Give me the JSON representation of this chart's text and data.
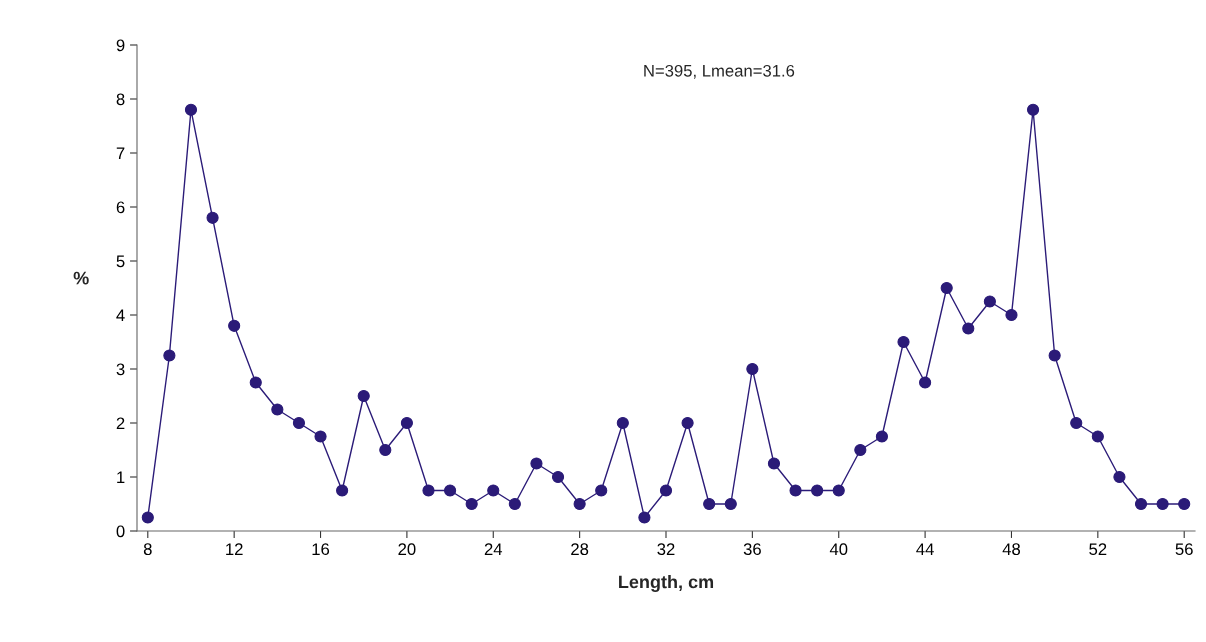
{
  "chart_data": {
    "type": "line",
    "x": [
      8,
      9,
      10,
      11,
      12,
      13,
      14,
      15,
      16,
      17,
      18,
      19,
      20,
      21,
      22,
      23,
      24,
      25,
      26,
      27,
      28,
      29,
      30,
      31,
      32,
      33,
      34,
      35,
      36,
      37,
      38,
      39,
      40,
      41,
      42,
      43,
      44,
      45,
      46,
      47,
      48,
      49,
      50,
      51,
      52,
      53,
      54,
      55,
      56
    ],
    "values": [
      0.25,
      3.25,
      7.8,
      5.8,
      3.8,
      2.75,
      2.25,
      2.0,
      1.75,
      0.75,
      2.5,
      1.5,
      2.0,
      0.75,
      0.75,
      0.5,
      0.75,
      0.5,
      1.25,
      1.0,
      0.5,
      0.75,
      2.0,
      0.25,
      0.75,
      2.0,
      0.5,
      0.5,
      3.0,
      1.25,
      0.75,
      0.75,
      0.75,
      1.5,
      1.75,
      3.5,
      2.75,
      4.5,
      3.75,
      4.25,
      4.0,
      7.8,
      3.25,
      2.0,
      1.75,
      1.0,
      0.5,
      0.5,
      0.5
    ],
    "color": "#2b1b78",
    "marker": "circle",
    "line_style": "solid",
    "xlabel": "Length, cm",
    "ylabel": "%",
    "xlim": [
      7.5,
      56.5
    ],
    "xticks": [
      8,
      12,
      16,
      20,
      24,
      28,
      32,
      36,
      40,
      44,
      48,
      52,
      56
    ],
    "ylim": [
      0,
      9
    ],
    "yticks": [
      0,
      1,
      2,
      3,
      4,
      5,
      6,
      7,
      8,
      9
    ],
    "grid": false,
    "annotations": [
      "N=395, Lmean=31.6"
    ]
  }
}
